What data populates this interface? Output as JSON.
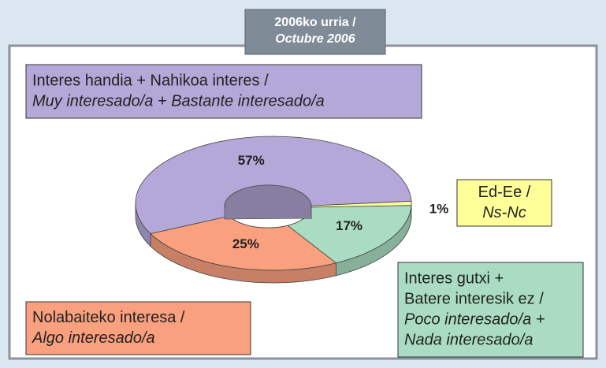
{
  "chart_data": {
    "type": "pie",
    "title": [
      "2006ko urria /",
      "Octubre 2006"
    ],
    "categories": [
      [
        "Interes handia + Nahikoa interes /",
        "Muy interesado/a + Bastante interesado/a"
      ],
      [
        "Nolabaiteko interesa /",
        "Algo interesado/a"
      ],
      [
        "Interes gutxi +",
        "Batere interesik ez /",
        "Poco interesado/a +",
        "Nada interesado/a"
      ],
      [
        "Ed-Ee /",
        "Ns-Nc"
      ]
    ],
    "values": [
      57,
      25,
      17,
      1
    ],
    "value_labels": [
      "57%",
      "25%",
      "17%",
      "1%"
    ],
    "colors": [
      "#b4a8d8",
      "#f9a07e",
      "#a9dcc2",
      "#ffff99"
    ]
  }
}
